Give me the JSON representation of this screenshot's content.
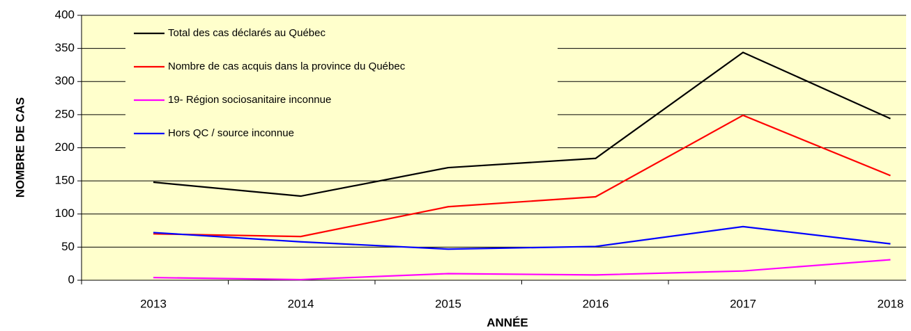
{
  "chart_data": {
    "type": "line",
    "x_label": "ANNÉE",
    "y_label": "NOMBRE DE CAS",
    "categories": [
      "2013",
      "2014",
      "2015",
      "2016",
      "2017",
      "2018"
    ],
    "series": [
      {
        "name": "Total des cas déclarés au Québec",
        "color": "#000000",
        "values": [
          148,
          127,
          170,
          184,
          344,
          244
        ]
      },
      {
        "name": "Nombre de cas acquis dans la province du Québec",
        "color": "#ff0000",
        "values": [
          70,
          66,
          111,
          126,
          249,
          158
        ]
      },
      {
        "name": "19- Région sociosanitaire inconnue",
        "color": "#ff00ff",
        "values": [
          4,
          1,
          10,
          8,
          14,
          31
        ]
      },
      {
        "name": "Hors QC / source inconnue",
        "color": "#0000ff",
        "values": [
          72,
          58,
          47,
          51,
          81,
          55
        ]
      }
    ],
    "ylim": [
      0,
      400
    ],
    "yticks": [
      0,
      50,
      100,
      150,
      200,
      250,
      300,
      350,
      400
    ],
    "grid": true,
    "legend": "upper left",
    "background": "#ffffcc"
  }
}
